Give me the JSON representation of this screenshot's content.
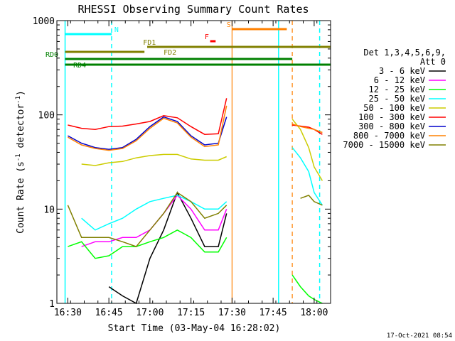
{
  "page": {
    "title": "RHESSI Observing Summary Count Rates",
    "xlabel": "Start Time (03-May-04 16:28:02)",
    "ylabel_main": "Count Rate (s",
    "ylabel_sup": "-1",
    "ylabel_tail": " detector",
    "ylabel_end": ")",
    "timestamp": "17-Oct-2021 08:54"
  },
  "legend": {
    "header": "Det 1,3,4,5,6,9,",
    "header2": "Att 0",
    "placement": "right"
  },
  "colors": {
    "axes": "#000000",
    "ch1": "#000000",
    "ch2": "#ff00ff",
    "ch3": "#00ff00",
    "ch4": "#00ffff",
    "ch5": "#cccc00",
    "ch6": "#ff0000",
    "ch7": "#0000cc",
    "ch8": "#ff8000",
    "ch9": "#808000",
    "night": "#00ffff",
    "saa": "#ff8000",
    "flare": "#ff0000",
    "decim_fd": "#808000",
    "decim_rd": "#008000"
  },
  "chart_data": {
    "type": "line",
    "title": "RHESSI Observing Summary Count Rates",
    "xlabel": "Start Time (03-May-04 16:28:02)",
    "ylabel": "Count Rate (s^-1 detector^-1)",
    "yscale": "log",
    "ylim": [
      1,
      1000
    ],
    "xlim": [
      "16:26",
      "18:06"
    ],
    "x_ticks": [
      "16:30",
      "16:45",
      "17:00",
      "17:15",
      "17:30",
      "17:45",
      "18:00"
    ],
    "y_ticks": [
      "1",
      "10",
      "100",
      "1000"
    ],
    "grid": false,
    "x": [
      "16:30",
      "16:35",
      "16:40",
      "16:45",
      "16:50",
      "16:55",
      "17:00",
      "17:05",
      "17:10",
      "17:15",
      "17:20",
      "17:25",
      "17:28",
      "17:30",
      "17:52",
      "17:55",
      "17:58",
      "18:00",
      "18:03"
    ],
    "series": [
      {
        "name": "3 - 6 keV",
        "color": "#000000",
        "values": [
          null,
          null,
          null,
          1.5,
          1.2,
          1.0,
          3,
          6,
          15,
          8,
          4,
          4,
          9,
          null,
          null,
          null,
          null,
          null,
          null
        ]
      },
      {
        "name": "6 - 12 keV",
        "color": "#ff00ff",
        "values": [
          null,
          4,
          4.5,
          4.5,
          5,
          5,
          6,
          9,
          14,
          10,
          6,
          6,
          10,
          null,
          null,
          null,
          null,
          null,
          null
        ]
      },
      {
        "name": "12 - 25 keV",
        "color": "#00ff00",
        "values": [
          4,
          4.5,
          3,
          3.2,
          4,
          4,
          4.5,
          5,
          6,
          5,
          3.5,
          3.5,
          5,
          null,
          2,
          1.5,
          1.2,
          1.1,
          1.0
        ]
      },
      {
        "name": "25 - 50 keV",
        "color": "#00ffff",
        "values": [
          null,
          8,
          6,
          7,
          8,
          10,
          12,
          13,
          14,
          12,
          10,
          10,
          12,
          null,
          45,
          35,
          25,
          15,
          11
        ]
      },
      {
        "name": "50 - 100 keV",
        "color": "#cccc00",
        "values": [
          null,
          30,
          29,
          31,
          32,
          35,
          37,
          38,
          38,
          34,
          33,
          33,
          36,
          null,
          90,
          70,
          45,
          28,
          20
        ]
      },
      {
        "name": "100 - 300 keV",
        "color": "#ff0000",
        "values": [
          78,
          72,
          70,
          75,
          76,
          80,
          85,
          98,
          93,
          75,
          62,
          63,
          150,
          null,
          78,
          76,
          74,
          70,
          62
        ]
      },
      {
        "name": "300 - 800 keV",
        "color": "#0000cc",
        "values": [
          60,
          50,
          45,
          43,
          45,
          55,
          75,
          95,
          85,
          60,
          48,
          50,
          95,
          null,
          null,
          null,
          null,
          null,
          null
        ]
      },
      {
        "name": "800 - 7000 keV",
        "color": "#ff8000",
        "values": [
          58,
          48,
          44,
          42,
          44,
          53,
          72,
          92,
          82,
          58,
          46,
          48,
          125,
          null,
          80,
          75,
          72,
          70,
          65
        ]
      },
      {
        "name": "7000 - 15000 keV",
        "color": "#808000",
        "values": [
          11,
          5,
          5,
          5,
          4.5,
          4,
          6,
          9,
          15,
          12,
          8,
          9,
          11,
          null,
          null,
          13,
          14,
          12,
          11
        ]
      }
    ],
    "annotations": [
      {
        "label": "N",
        "color": "#00ffff",
        "start": "16:29",
        "end": "16:46"
      },
      {
        "label": "S",
        "color": "#ff8000",
        "start": "17:30",
        "end": "17:50"
      },
      {
        "label": "F",
        "color": "#ff0000",
        "start": "17:22",
        "end": "17:24"
      },
      {
        "label": "FD1",
        "color": "#808000",
        "start": "16:59",
        "end": "18:06"
      },
      {
        "label": "FD2",
        "color": "#808000",
        "start": "16:29",
        "end": "16:58"
      },
      {
        "label": "RD0",
        "color": "#008000",
        "start": "16:29",
        "end": "17:52"
      },
      {
        "label": "RD4",
        "color": "#008000",
        "start": "16:29",
        "end": "18:06"
      }
    ],
    "night_boundaries": [
      "16:29",
      "16:46",
      "17:47",
      "18:02"
    ],
    "saa_boundaries": [
      "17:30",
      "17:52"
    ]
  }
}
